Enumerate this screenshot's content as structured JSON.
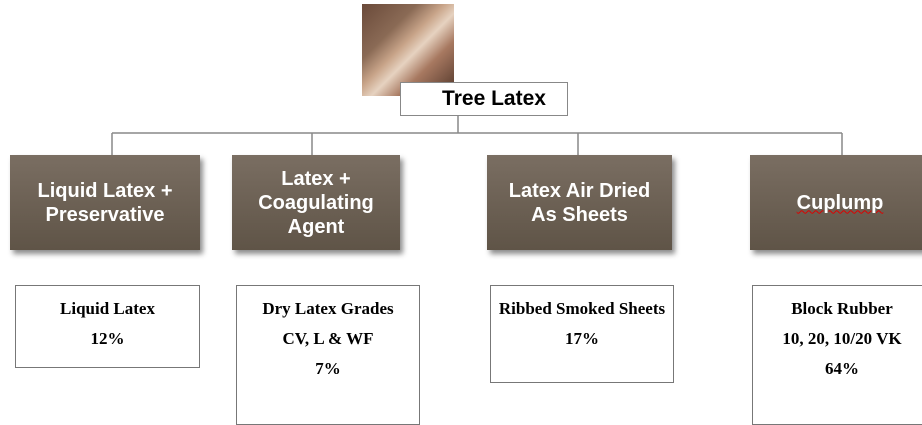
{
  "root": {
    "label": "Tree Latex"
  },
  "branches": [
    {
      "label": "Liquid Latex + Preservative",
      "product": [
        "Liquid Latex",
        "12%"
      ]
    },
    {
      "label": "Latex + Coagulating Agent",
      "product": [
        "Dry Latex Grades",
        "CV, L & WF",
        "7%"
      ]
    },
    {
      "label": "Latex Air Dried As Sheets",
      "product": [
        "Ribbed Smoked Sheets",
        "17%"
      ]
    },
    {
      "label": "Cuplump",
      "product": [
        "Block Rubber",
        "10, 20, 10/20 VK",
        "64%"
      ]
    }
  ]
}
